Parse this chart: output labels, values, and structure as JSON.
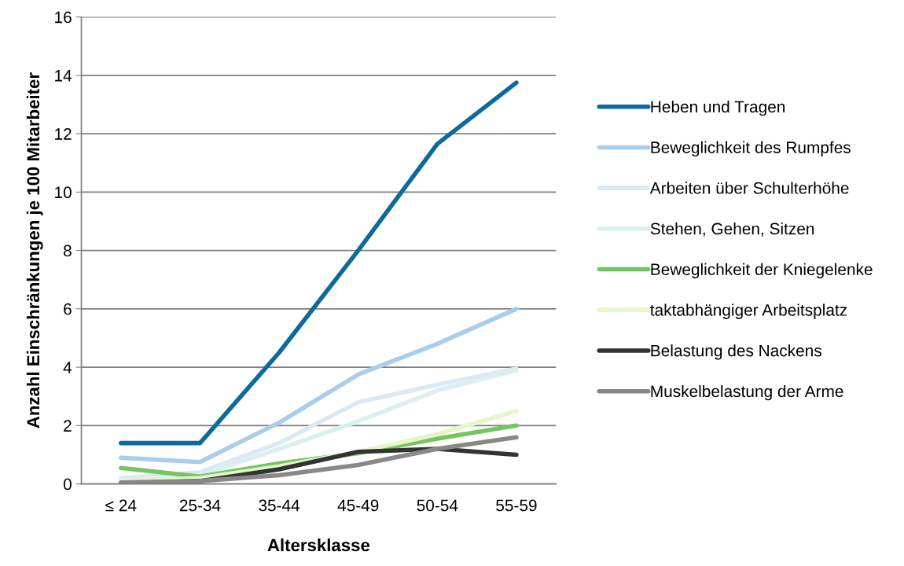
{
  "chart_data": {
    "type": "line",
    "xlabel": "Altersklasse",
    "ylabel": "Anzahl Einschränkungen je 100 Mitarbeiter",
    "categories": [
      "≤ 24",
      "25-34",
      "35-44",
      "45-49",
      "50-54",
      "55-59"
    ],
    "ylim": [
      0,
      16
    ],
    "yticks": [
      0,
      2,
      4,
      6,
      8,
      10,
      12,
      14,
      16
    ],
    "grid": "y",
    "legend": "right",
    "marker": "none",
    "line_style": "solid",
    "series": [
      {
        "name": "Heben und Tragen",
        "color": "#0e6a9c",
        "values": [
          1.4,
          1.4,
          4.5,
          8.0,
          11.65,
          13.75
        ]
      },
      {
        "name": "Beweglichkeit des Rumpfes",
        "color": "#a9cdec",
        "values": [
          0.9,
          0.75,
          2.1,
          3.75,
          4.8,
          6.0
        ]
      },
      {
        "name": "Arbeiten über Schulterhöhe",
        "color": "#dbe8f6",
        "values": [
          0.2,
          0.4,
          1.4,
          2.8,
          3.4,
          3.95
        ]
      },
      {
        "name": "Stehen, Gehen, Sitzen",
        "color": "#dcefef",
        "values": [
          0.1,
          0.3,
          1.2,
          2.15,
          3.2,
          3.9
        ]
      },
      {
        "name": "Beweglichkeit der Kniegelenke",
        "color": "#76c563",
        "values": [
          0.55,
          0.25,
          0.7,
          1.05,
          1.55,
          2.0
        ]
      },
      {
        "name": "taktabhängiger Arbeitsplatz",
        "color": "#e5f6c8",
        "values": [
          0.1,
          0.2,
          0.6,
          1.1,
          1.7,
          2.5
        ]
      },
      {
        "name": "Belastung des Nackens",
        "color": "#333333",
        "values": [
          0.0,
          0.1,
          0.5,
          1.1,
          1.2,
          1.0
        ]
      },
      {
        "name": "Muskelbelastung der Arme",
        "color": "#888888",
        "values": [
          0.05,
          0.1,
          0.3,
          0.65,
          1.2,
          1.6
        ]
      }
    ]
  }
}
